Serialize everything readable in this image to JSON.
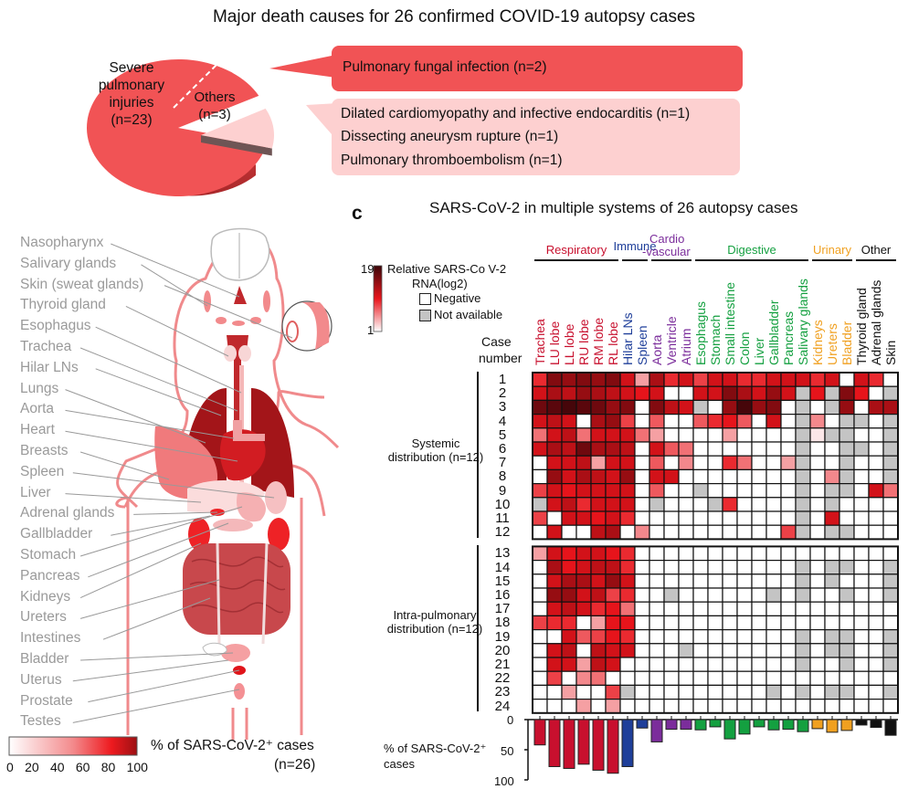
{
  "pie_panel": {
    "title": "Major death causes for 26 confirmed COVID-19 autopsy cases",
    "slices": [
      {
        "label_lines": [
          "Severe",
          "pulmonary",
          "injuries",
          "(n=23)"
        ],
        "count": 23,
        "color": "#f15355"
      },
      {
        "label_lines": [
          "Others",
          "(n=3)"
        ],
        "count": 3,
        "color": "#fdd0d0"
      }
    ],
    "callout_main": "Pulmonary fungal infection (n=2)",
    "callout_others": [
      "Dilated cardiomyopathy and infective endocarditis (n=1)",
      "Dissecting aneurysm rupture  (n=1)",
      "Pulmonary thromboembolism (n=1)"
    ]
  },
  "body_panel": {
    "labels": [
      "Nasopharynx",
      "Salivary glands",
      "Skin (sweat glands)",
      "Thyroid gland",
      "Esophagus",
      "Trachea",
      "Hilar LNs",
      "Lungs",
      "Aorta",
      "Heart",
      "Breasts",
      "Spleen",
      "Liver",
      "Adrenal glands",
      "Gallbladder",
      "Stomach",
      "Pancreas",
      "Kidneys",
      "Ureters",
      "Intestines",
      "Bladder",
      "Uterus",
      "Prostate",
      "Testes"
    ],
    "scale_ticks": [
      "0",
      "20",
      "40",
      "60",
      "80",
      "100"
    ],
    "scale_title": "% of SARS-CoV-2⁺ cases",
    "scale_n": "(n=26)"
  },
  "chart_data": {
    "type": "heatmap",
    "panel_letter": "c",
    "title": "SARS-CoV-2 in multiple systems of 26 autopsy cases",
    "legend": {
      "scale_title_line1": "Relative SARS-Co V-2",
      "scale_title_line2": "RNA(log2)",
      "scale_max": "19",
      "scale_min": "1",
      "negative": "Negative",
      "not_available": "Not available"
    },
    "row_header_line1": "Case",
    "row_header_line2": "number",
    "groups": [
      {
        "name": "Respiratory",
        "color": "#c8102e",
        "span": 6
      },
      {
        "name": "Immune",
        "color": "#1f3f9a",
        "span": 2
      },
      {
        "name": "Cardio\n-vascular",
        "name_line1": "Cardio",
        "name_line2": "-vascular",
        "color": "#7b2d9b",
        "span": 3
      },
      {
        "name": "Digestive",
        "color": "#14a040",
        "span": 8
      },
      {
        "name": "Urinary",
        "color": "#f0a020",
        "span": 3
      },
      {
        "name": "Other",
        "color": "#111111",
        "span": 3
      }
    ],
    "columns": [
      "Trachea",
      "LU lobe",
      "LL lobe",
      "RU lobe",
      "RM lobe",
      "RL lobe",
      "Hilar LNs",
      "Spleen",
      "Aorta",
      "Ventricle",
      "Atrium",
      "Esophagus",
      "Stomach",
      "Small intestine",
      "Colon",
      "Liver",
      "Gallbladder",
      "Pancreas",
      "Salivary glands",
      "Kidneys",
      "Ureters",
      "Bladder",
      "Thyroid gland",
      "Adrenal glands",
      "Skin"
    ],
    "column_groups": [
      0,
      0,
      0,
      0,
      0,
      0,
      1,
      1,
      2,
      2,
      2,
      3,
      3,
      3,
      3,
      3,
      3,
      3,
      3,
      4,
      4,
      4,
      5,
      5,
      5
    ],
    "row_groups": [
      {
        "label_line1": "Systemic",
        "label_line2": "distribution (n=12)",
        "rows": [
          "1",
          "2",
          "3",
          "4",
          "5",
          "6",
          "7",
          "8",
          "9",
          "10",
          "11",
          "12"
        ]
      },
      {
        "label_line1": "Intra-pulmonary",
        "label_line2": "distribution (n=12)",
        "rows": [
          "13",
          "14",
          "15",
          "16",
          "17",
          "18",
          "19",
          "20",
          "21",
          "22",
          "23",
          "24"
        ]
      }
    ],
    "value_note": "cell values: 0 = Negative, -1 = Not available, 1..19 = relative RNA (log2)",
    "values": [
      [
        10,
        16,
        15,
        16,
        15,
        16,
        12,
        5,
        14,
        10,
        12,
        9,
        12,
        12,
        10,
        10,
        12,
        12,
        12,
        10,
        12,
        0,
        12,
        10,
        0
      ],
      [
        12,
        14,
        13,
        15,
        14,
        13,
        12,
        11,
        12,
        0,
        0,
        12,
        12,
        16,
        14,
        12,
        15,
        12,
        -1,
        11,
        -1,
        16,
        11,
        0,
        -1
      ],
      [
        17,
        18,
        19,
        18,
        17,
        15,
        16,
        0,
        16,
        13,
        12,
        -1,
        0,
        15,
        19,
        15,
        16,
        0,
        -1,
        0,
        -1,
        15,
        0,
        14,
        14
      ],
      [
        12,
        13,
        12,
        0,
        14,
        15,
        9,
        0,
        8,
        0,
        0,
        8,
        10,
        11,
        8,
        0,
        12,
        0,
        -1,
        6,
        0,
        -1,
        -1,
        0,
        -1
      ],
      [
        7,
        12,
        13,
        7,
        12,
        12,
        12,
        7,
        5,
        0,
        0,
        0,
        0,
        5,
        0,
        0,
        0,
        0,
        -1,
        2,
        -1,
        -1,
        0,
        0,
        -1
      ],
      [
        12,
        14,
        13,
        17,
        14,
        14,
        13,
        0,
        12,
        8,
        7,
        0,
        0,
        0,
        0,
        0,
        0,
        0,
        -1,
        0,
        0,
        -1,
        -1,
        0,
        -1
      ],
      [
        0,
        12,
        12,
        13,
        5,
        12,
        12,
        0,
        8,
        0,
        6,
        0,
        0,
        10,
        7,
        0,
        0,
        5,
        -1,
        0,
        0,
        -1,
        0,
        0,
        -1
      ],
      [
        0,
        15,
        12,
        14,
        13,
        12,
        15,
        0,
        12,
        12,
        0,
        0,
        0,
        0,
        0,
        0,
        0,
        0,
        -1,
        0,
        6,
        -1,
        0,
        0,
        -1
      ],
      [
        9,
        12,
        11,
        12,
        12,
        12,
        12,
        0,
        8,
        0,
        0,
        -1,
        0,
        0,
        0,
        0,
        0,
        0,
        -1,
        0,
        -1,
        -1,
        0,
        12,
        7
      ],
      [
        -1,
        12,
        13,
        10,
        12,
        12,
        12,
        0,
        -1,
        0,
        0,
        0,
        -1,
        10,
        0,
        0,
        0,
        0,
        -1,
        0,
        -1,
        0,
        0,
        0,
        0
      ],
      [
        9,
        0,
        12,
        12,
        11,
        12,
        10,
        0,
        0,
        0,
        0,
        0,
        0,
        0,
        0,
        0,
        0,
        0,
        -1,
        0,
        12,
        0,
        0,
        0,
        0
      ],
      [
        0,
        12,
        0,
        0,
        13,
        14,
        0,
        6,
        0,
        0,
        0,
        0,
        0,
        0,
        0,
        0,
        0,
        9,
        -1,
        0,
        -1,
        -1,
        0,
        0,
        0
      ],
      [
        5,
        12,
        11,
        12,
        12,
        11,
        10,
        0,
        0,
        0,
        0,
        0,
        0,
        0,
        0,
        0,
        0,
        0,
        0,
        0,
        0,
        0,
        0,
        0,
        0
      ],
      [
        0,
        14,
        11,
        12,
        13,
        13,
        10,
        0,
        0,
        0,
        0,
        0,
        0,
        0,
        0,
        0,
        0,
        0,
        -1,
        0,
        -1,
        -1,
        0,
        0,
        -1
      ],
      [
        0,
        12,
        14,
        14,
        12,
        15,
        12,
        0,
        0,
        0,
        0,
        0,
        0,
        0,
        0,
        0,
        0,
        0,
        -1,
        0,
        -1,
        0,
        0,
        0,
        -1
      ],
      [
        0,
        15,
        15,
        12,
        13,
        9,
        10,
        0,
        0,
        -1,
        0,
        0,
        0,
        0,
        0,
        0,
        -1,
        0,
        -1,
        0,
        0,
        -1,
        0,
        0,
        -1
      ],
      [
        0,
        12,
        13,
        12,
        10,
        11,
        7,
        0,
        0,
        0,
        0,
        0,
        0,
        0,
        0,
        0,
        0,
        0,
        0,
        0,
        0,
        0,
        0,
        0,
        0
      ],
      [
        9,
        10,
        10,
        0,
        5,
        11,
        11,
        0,
        0,
        0,
        0,
        0,
        0,
        0,
        0,
        0,
        0,
        0,
        0,
        0,
        0,
        0,
        0,
        0,
        0
      ],
      [
        0,
        0,
        12,
        8,
        9,
        11,
        10,
        0,
        0,
        0,
        0,
        0,
        0,
        0,
        0,
        0,
        0,
        0,
        -1,
        0,
        -1,
        -1,
        0,
        0,
        -1
      ],
      [
        0,
        12,
        13,
        0,
        13,
        12,
        12,
        0,
        0,
        0,
        -1,
        0,
        0,
        0,
        0,
        0,
        0,
        0,
        -1,
        0,
        -1,
        -1,
        0,
        0,
        -1
      ],
      [
        0,
        12,
        12,
        5,
        13,
        12,
        0,
        0,
        0,
        0,
        0,
        0,
        0,
        0,
        0,
        0,
        0,
        0,
        -1,
        0,
        0,
        -1,
        0,
        0,
        -1
      ],
      [
        0,
        9,
        0,
        6,
        7,
        0,
        0,
        0,
        0,
        0,
        0,
        0,
        0,
        0,
        0,
        0,
        0,
        0,
        0,
        0,
        0,
        0,
        0,
        0,
        0
      ],
      [
        0,
        0,
        5,
        0,
        0,
        9,
        -1,
        0,
        0,
        0,
        0,
        0,
        0,
        0,
        0,
        0,
        -1,
        0,
        -1,
        0,
        -1,
        -1,
        0,
        0,
        -1
      ],
      [
        0,
        0,
        0,
        5,
        0,
        5,
        0,
        0,
        0,
        0,
        0,
        0,
        0,
        0,
        0,
        0,
        0,
        0,
        0,
        0,
        0,
        0,
        0,
        0,
        0
      ]
    ],
    "bar_chart": {
      "type": "bar",
      "ylabel_line1": "% of SARS-CoV-2⁺",
      "ylabel_line2": "cases",
      "ylim": [
        0,
        100
      ],
      "ticks": [
        "0",
        "50",
        "100"
      ],
      "values": [
        42,
        78,
        81,
        74,
        84,
        89,
        78,
        14,
        37,
        16,
        16,
        17,
        12,
        32,
        24,
        12,
        17,
        16,
        20,
        15,
        21,
        18,
        9,
        13,
        26
      ]
    }
  }
}
